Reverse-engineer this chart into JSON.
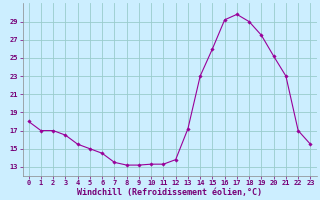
{
  "windchill": [
    18.0,
    17.0,
    17.0,
    16.5,
    15.5,
    15.0,
    14.5,
    13.5,
    13.2,
    13.2,
    13.3,
    13.3,
    13.8,
    17.2,
    23.0,
    26.0,
    29.2,
    29.8,
    29.0,
    27.5,
    25.2,
    23.0,
    17.0,
    15.5
  ],
  "hours": [
    0,
    1,
    2,
    3,
    4,
    5,
    6,
    7,
    8,
    9,
    10,
    11,
    12,
    13,
    14,
    15,
    16,
    17,
    18,
    19,
    20,
    21,
    22,
    23
  ],
  "line_color": "#990099",
  "marker": "D",
  "marker_size": 1.8,
  "bg_color": "#cceeff",
  "grid_color": "#99cccc",
  "xlabel": "Windchill (Refroidissement éolien,°C)",
  "xlim": [
    -0.5,
    23.5
  ],
  "ylim": [
    12,
    31
  ],
  "yticks": [
    13,
    15,
    17,
    19,
    21,
    23,
    25,
    27,
    29
  ],
  "xticks": [
    0,
    1,
    2,
    3,
    4,
    5,
    6,
    7,
    8,
    9,
    10,
    11,
    12,
    13,
    14,
    15,
    16,
    17,
    18,
    19,
    20,
    21,
    22,
    23
  ],
  "tick_fontsize": 5,
  "xlabel_fontsize": 6,
  "linewidth": 0.8
}
